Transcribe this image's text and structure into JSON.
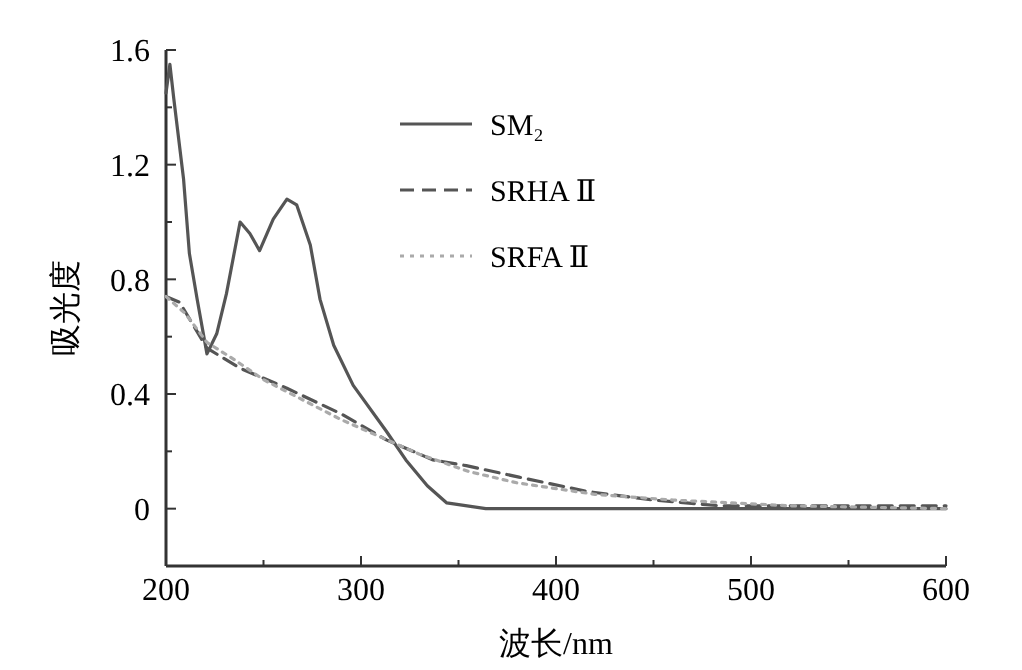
{
  "chart_data": {
    "type": "line",
    "xlabel": "波长/nm",
    "ylabel": "吸光度",
    "xlim": [
      200,
      600
    ],
    "ylim": [
      -0.2,
      1.6
    ],
    "xticks": [
      200,
      {
        "value": 250,
        "label": null
      },
      300,
      {
        "value": 350,
        "label": null
      },
      400,
      {
        "value": 450,
        "label": null
      },
      500,
      {
        "value": 550,
        "label": null
      },
      600
    ],
    "yticks": [
      {
        "value": -0.2,
        "label": null
      },
      0,
      {
        "value": 0.2,
        "label": null
      },
      0.4,
      {
        "value": 0.6,
        "label": null
      },
      0.8,
      {
        "value": 1.0,
        "label": null
      },
      1.2,
      {
        "value": 1.4,
        "label": null
      },
      1.6
    ],
    "grid": false,
    "legend": "top",
    "marker": "none",
    "series": [
      {
        "name": "SM₂",
        "color": "#555555",
        "line_style": "solid",
        "x": [
          200,
          202,
          204,
          209,
          212,
          216,
          221,
          226,
          231,
          238,
          243,
          248,
          255,
          262,
          267,
          274,
          279,
          286,
          296,
          313,
          323,
          334,
          344,
          364,
          400,
          500,
          600
        ],
        "values": [
          1.45,
          1.55,
          1.43,
          1.15,
          0.89,
          0.73,
          0.54,
          0.61,
          0.75,
          1.0,
          0.96,
          0.9,
          1.01,
          1.08,
          1.06,
          0.92,
          0.73,
          0.57,
          0.43,
          0.27,
          0.17,
          0.08,
          0.02,
          0,
          0,
          0,
          0
        ]
      },
      {
        "name": "SRHA Ⅱ",
        "color": "#555555",
        "line_style": "dashed",
        "x": [
          200,
          207,
          221,
          238,
          262,
          290,
          313,
          337,
          354,
          381,
          416,
          450,
          484,
          540,
          600
        ],
        "values": [
          0.74,
          0.72,
          0.56,
          0.49,
          0.42,
          0.33,
          0.24,
          0.17,
          0.15,
          0.11,
          0.06,
          0.03,
          0.01,
          0.01,
          0.01
        ]
      },
      {
        "name": "SRFA Ⅱ",
        "color": "#aaaaaa",
        "line_style": "dotted",
        "x": [
          200,
          210,
          221,
          235,
          250,
          270,
          290,
          310,
          330,
          355,
          380,
          420,
          460,
          520,
          600
        ],
        "values": [
          0.74,
          0.68,
          0.58,
          0.52,
          0.45,
          0.38,
          0.31,
          0.25,
          0.19,
          0.13,
          0.09,
          0.05,
          0.03,
          0.01,
          0.0
        ]
      }
    ]
  }
}
